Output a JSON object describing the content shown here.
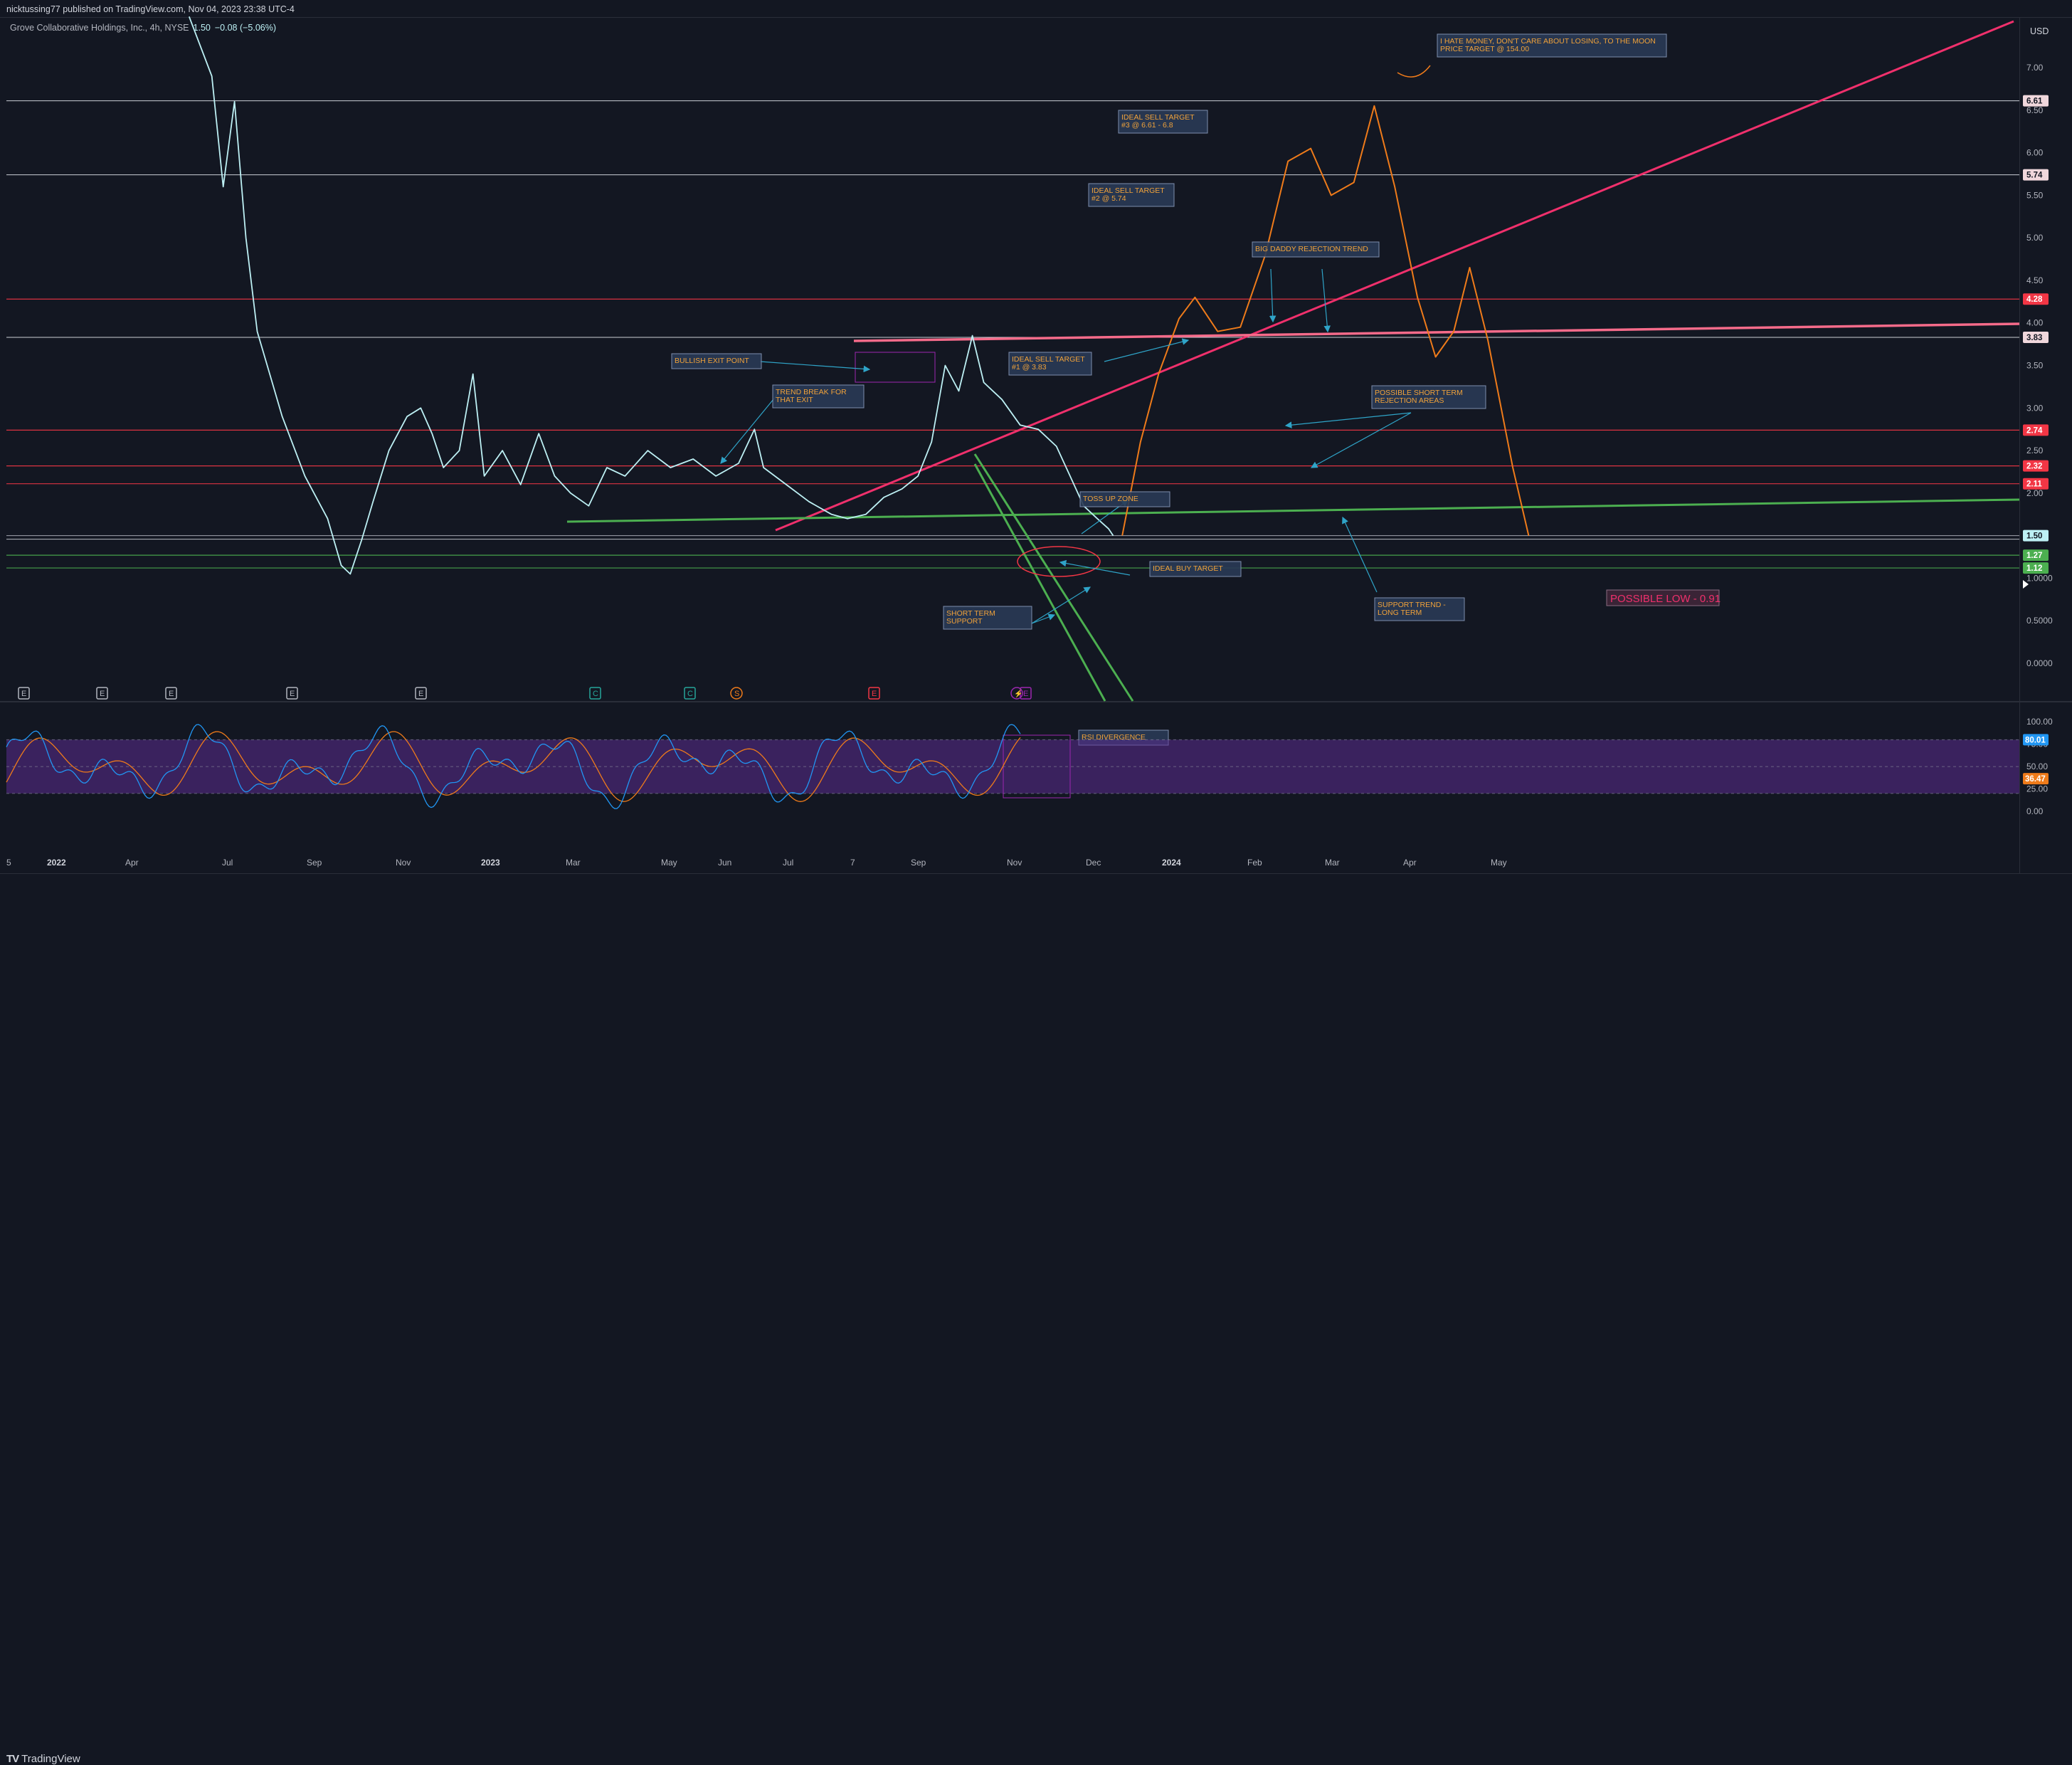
{
  "header": {
    "publisher_line": "nicktussing77 published on TradingView.com, Nov 04, 2023 23:38 UTC-4"
  },
  "legend": {
    "symbol_info": "Grove Collaborative Holdings, Inc., 4h, NYSE",
    "last_price": "1.50",
    "change": "−0.08 (−5.06%)"
  },
  "footer": {
    "brand": "TradingView"
  },
  "colors": {
    "background": "#131722",
    "price_line": "#bdf0f4",
    "resistance": "#f23645",
    "white_level": "#e0e3eb",
    "support": "#4caf50",
    "trend": "#f0306c",
    "projection": "#ef7b1a",
    "annotation_text": "#f0a23a",
    "annotation_bg": "#2a3a55",
    "rsi_band": "#5b2c8f",
    "rsi_line": "#2196f3",
    "rsi_signal": "#ef7b1a"
  },
  "chart_data": {
    "type": "line",
    "symbol": "GROV",
    "interval": "4h",
    "price_axis": {
      "currency": "USD",
      "ticks": [
        "7.00",
        "6.50",
        "6.00",
        "5.50",
        "5.00",
        "4.50",
        "4.00",
        "3.50",
        "3.00",
        "2.50",
        "2.00",
        "1.0000",
        "0.5000",
        "0.0000"
      ],
      "range": [
        -0.3,
        7.6
      ]
    },
    "time_axis": {
      "ticks": [
        "5",
        "2022",
        "Apr",
        "Jul",
        "Sep",
        "Nov",
        "2023",
        "Mar",
        "May",
        "Jun",
        "Jul",
        "7",
        "Sep",
        "Nov",
        "Dec",
        "2024",
        "Feb",
        "Mar",
        "Apr",
        "May"
      ]
    },
    "series": [
      {
        "name": "Price",
        "points": [
          [
            "2021-09-25",
            7.6
          ],
          [
            "2021-10-05",
            6.9
          ],
          [
            "2021-10-10",
            5.6
          ],
          [
            "2021-10-15",
            6.6
          ],
          [
            "2021-10-20",
            5.0
          ],
          [
            "2021-10-25",
            3.9
          ],
          [
            "2021-11-05",
            2.9
          ],
          [
            "2021-11-15",
            2.2
          ],
          [
            "2021-11-25",
            1.7
          ],
          [
            "2021-12-01",
            1.15
          ],
          [
            "2021-12-05",
            1.05
          ],
          [
            "2021-12-10",
            1.45
          ],
          [
            "2021-12-15",
            1.9
          ],
          [
            "2021-12-22",
            2.5
          ],
          [
            "2021-12-30",
            2.9
          ],
          [
            "2022-01-05",
            3.0
          ],
          [
            "2022-01-10",
            2.7
          ],
          [
            "2022-01-15",
            2.3
          ],
          [
            "2022-01-22",
            2.5
          ],
          [
            "2022-01-28",
            3.4
          ],
          [
            "2022-02-02",
            2.2
          ],
          [
            "2022-02-10",
            2.5
          ],
          [
            "2022-02-18",
            2.1
          ],
          [
            "2022-02-26",
            2.7
          ],
          [
            "2022-03-05",
            2.2
          ],
          [
            "2022-03-12",
            2.0
          ],
          [
            "2022-03-20",
            1.85
          ],
          [
            "2022-03-28",
            2.3
          ],
          [
            "2022-04-05",
            2.2
          ],
          [
            "2022-04-15",
            2.5
          ],
          [
            "2022-04-25",
            2.3
          ],
          [
            "2022-05-05",
            2.4
          ],
          [
            "2022-05-15",
            2.2
          ],
          [
            "2022-05-25",
            2.35
          ],
          [
            "2022-06-01",
            2.75
          ],
          [
            "2022-06-05",
            2.3
          ],
          [
            "2022-06-15",
            2.1
          ],
          [
            "2022-06-25",
            1.9
          ],
          [
            "2022-07-05",
            1.75
          ],
          [
            "2022-07-12",
            1.7
          ],
          [
            "2022-07-20",
            1.75
          ],
          [
            "2022-07-28",
            1.95
          ],
          [
            "2022-08-05",
            2.05
          ],
          [
            "2022-08-12",
            2.2
          ],
          [
            "2022-08-18",
            2.6
          ],
          [
            "2022-08-24",
            3.5
          ],
          [
            "2022-08-30",
            3.2
          ],
          [
            "2022-09-05",
            3.85
          ],
          [
            "2022-09-10",
            3.3
          ],
          [
            "2022-09-18",
            3.1
          ],
          [
            "2022-09-26",
            2.8
          ],
          [
            "2022-10-04",
            2.75
          ],
          [
            "2022-10-12",
            2.55
          ],
          [
            "2022-10-18",
            2.2
          ],
          [
            "2022-10-24",
            1.85
          ],
          [
            "2022-10-30",
            1.7
          ],
          [
            "2022-11-04",
            1.58
          ],
          [
            "2022-11-06",
            1.5
          ]
        ]
      },
      {
        "name": "Projection",
        "points": [
          [
            "2022-11-10",
            1.5
          ],
          [
            "2022-11-18",
            2.6
          ],
          [
            "2022-11-26",
            3.4
          ],
          [
            "2022-12-05",
            4.05
          ],
          [
            "2022-12-12",
            4.3
          ],
          [
            "2022-12-22",
            3.9
          ],
          [
            "2023-01-01",
            3.95
          ],
          [
            "2023-01-12",
            4.8
          ],
          [
            "2023-01-22",
            5.9
          ],
          [
            "2023-02-01",
            6.05
          ],
          [
            "2023-02-10",
            5.5
          ],
          [
            "2023-02-20",
            5.65
          ],
          [
            "2023-03-01",
            6.55
          ],
          [
            "2023-03-10",
            5.6
          ],
          [
            "2023-03-20",
            4.3
          ],
          [
            "2023-03-28",
            3.6
          ],
          [
            "2023-04-05",
            3.9
          ],
          [
            "2023-04-12",
            4.65
          ],
          [
            "2023-04-20",
            3.8
          ],
          [
            "2023-05-01",
            2.3
          ],
          [
            "2023-05-08",
            1.5
          ]
        ]
      }
    ],
    "price_levels": [
      {
        "value": 6.61,
        "label": "6.61",
        "color": "white"
      },
      {
        "value": 5.74,
        "label": "5.74",
        "color": "white"
      },
      {
        "value": 4.28,
        "label": "4.28",
        "color": "red"
      },
      {
        "value": 3.83,
        "label": "3.83",
        "color": "white"
      },
      {
        "value": 2.74,
        "label": "2.74",
        "color": "red"
      },
      {
        "value": 2.32,
        "label": "2.32",
        "color": "red"
      },
      {
        "value": 2.11,
        "label": "2.11",
        "color": "red"
      },
      {
        "value": 1.5,
        "label": "1.50",
        "color": "current"
      },
      {
        "value": 1.27,
        "label": "1.27",
        "color": "green"
      },
      {
        "value": 1.12,
        "label": "1.12",
        "color": "green"
      }
    ],
    "annotations": [
      {
        "lines": [
          "I HATE MONEY, DON'T CARE ABOUT LOSING, TO THE MOON",
          "PRICE TARGET @ 154.00"
        ]
      },
      {
        "lines": [
          "IDEAL SELL TARGET",
          "#3 @ 6.61 - 6.8"
        ]
      },
      {
        "lines": [
          "IDEAL SELL TARGET",
          "#2 @ 5.74"
        ]
      },
      {
        "lines": [
          "BIG DADDY REJECTION TREND"
        ]
      },
      {
        "lines": [
          "BULLISH EXIT POINT"
        ]
      },
      {
        "lines": [
          "TREND BREAK FOR",
          "THAT EXIT"
        ]
      },
      {
        "lines": [
          "IDEAL SELL TARGET",
          "#1 @ 3.83"
        ]
      },
      {
        "lines": [
          "POSSIBLE SHORT TERM",
          "REJECTION AREAS"
        ]
      },
      {
        "lines": [
          "TOSS UP ZONE"
        ]
      },
      {
        "lines": [
          "IDEAL BUY TARGET"
        ]
      },
      {
        "lines": [
          "SHORT TERM",
          "SUPPORT"
        ]
      },
      {
        "lines": [
          "SUPPORT TREND -",
          "LONG TERM"
        ]
      },
      {
        "lines": [
          "RSI DIVERGENCE"
        ]
      }
    ],
    "possible_low_label": "POSSIBLE LOW - 0.91",
    "event_markers": [
      "E",
      "E",
      "E",
      "E",
      "E",
      "C",
      "C",
      "S",
      "E",
      "E"
    ],
    "indicator": {
      "name": "Stochastic RSI",
      "ticks": [
        "100.00",
        "75.00",
        "50.00",
        "25.00",
        "0.00"
      ],
      "band": [
        20,
        80
      ],
      "k_value": "80.01",
      "d_value": "36.47"
    }
  }
}
